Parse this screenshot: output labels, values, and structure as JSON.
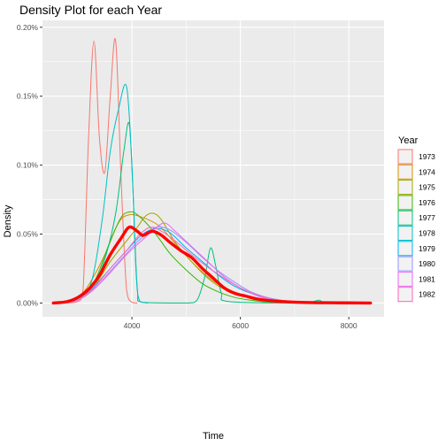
{
  "chart_data": {
    "type": "line",
    "title": "Density Plot for each Year",
    "xlabel": "Time",
    "ylabel": "Density",
    "xlim": [
      2350,
      8650
    ],
    "ylim": [
      -0.0001,
      0.00205
    ],
    "x_ticks": [
      {
        "value": 4000,
        "label": "4000"
      },
      {
        "value": 6000,
        "label": "6000"
      },
      {
        "value": 8000,
        "label": "8000"
      }
    ],
    "y_ticks": [
      {
        "value": 0.0,
        "label": "0.00%"
      },
      {
        "value": 0.0005,
        "label": "0.05%"
      },
      {
        "value": 0.001,
        "label": "0.10%"
      },
      {
        "value": 0.0015,
        "label": "0.15%"
      },
      {
        "value": 0.002,
        "label": "0.20%"
      }
    ],
    "grid": true,
    "legend": {
      "title": "Year",
      "position": "right"
    },
    "series": [
      {
        "name": "1973",
        "color": "#F8766D",
        "points": [
          [
            2800,
            0
          ],
          [
            3000,
            1e-05
          ],
          [
            3100,
            0.0001
          ],
          [
            3200,
            0.0012
          ],
          [
            3300,
            0.0019
          ],
          [
            3400,
            0.0012
          ],
          [
            3500,
            0.00095
          ],
          [
            3600,
            0.0015
          ],
          [
            3700,
            0.0019
          ],
          [
            3800,
            0.0009
          ],
          [
            3900,
            0.0001
          ],
          [
            4000,
            5e-06
          ],
          [
            4100,
            0
          ]
        ]
      },
      {
        "name": "1974",
        "color": "#D89000",
        "points": [
          [
            2700,
            0
          ],
          [
            3000,
            4e-05
          ],
          [
            3200,
            0.00013
          ],
          [
            3500,
            0.00035
          ],
          [
            3750,
            0.00058
          ],
          [
            3950,
            0.00064
          ],
          [
            4200,
            0.00062
          ],
          [
            4500,
            0.00056
          ],
          [
            4800,
            0.00043
          ],
          [
            5100,
            0.0003
          ],
          [
            5400,
            0.00019
          ],
          [
            5700,
            0.00011
          ],
          [
            6000,
            6e-05
          ],
          [
            6300,
            3e-05
          ],
          [
            6600,
            1e-05
          ],
          [
            7000,
            0
          ]
        ]
      },
      {
        "name": "1975",
        "color": "#A3A500",
        "points": [
          [
            2700,
            0
          ],
          [
            3000,
            3e-05
          ],
          [
            3300,
            0.00012
          ],
          [
            3600,
            0.0003
          ],
          [
            3900,
            0.00045
          ],
          [
            4100,
            0.00055
          ],
          [
            4250,
            0.00063
          ],
          [
            4400,
            0.00065
          ],
          [
            4550,
            0.0006
          ],
          [
            4800,
            0.00044
          ],
          [
            5100,
            0.0003
          ],
          [
            5400,
            0.00018
          ],
          [
            5700,
            0.0001
          ],
          [
            6000,
            6e-05
          ],
          [
            6400,
            2e-05
          ],
          [
            7000,
            0
          ]
        ]
      },
      {
        "name": "1976",
        "color": "#39B600",
        "points": [
          [
            2700,
            0
          ],
          [
            3000,
            4e-05
          ],
          [
            3300,
            0.00015
          ],
          [
            3600,
            0.00045
          ],
          [
            3800,
            0.00062
          ],
          [
            3950,
            0.00066
          ],
          [
            4100,
            0.00064
          ],
          [
            4400,
            0.00052
          ],
          [
            4700,
            0.00036
          ],
          [
            5000,
            0.00024
          ],
          [
            5300,
            0.00014
          ],
          [
            5600,
            8e-05
          ],
          [
            5900,
            4e-05
          ],
          [
            6200,
            2e-05
          ],
          [
            6600,
            0
          ]
        ]
      },
      {
        "name": "1977",
        "color": "#00BF7D",
        "points": [
          [
            2700,
            0
          ],
          [
            3000,
            3e-05
          ],
          [
            3300,
            0.00015
          ],
          [
            3500,
            0.00032
          ],
          [
            3700,
            0.00065
          ],
          [
            3850,
            0.0011
          ],
          [
            3950,
            0.0013
          ],
          [
            4020,
            0.0008
          ],
          [
            4100,
            0.0001
          ],
          [
            4200,
            5e-06
          ],
          [
            5000,
            0
          ],
          [
            5200,
            2e-05
          ],
          [
            5350,
            0.0002
          ],
          [
            5450,
            0.0004
          ],
          [
            5550,
            0.00026
          ],
          [
            5650,
            7e-05
          ],
          [
            5800,
            1e-05
          ],
          [
            7200,
            0
          ],
          [
            7350,
            1e-05
          ],
          [
            7450,
            2e-05
          ],
          [
            7550,
            0
          ]
        ]
      },
      {
        "name": "1978",
        "color": "#00BFC4",
        "points": [
          [
            2700,
            0
          ],
          [
            3000,
            3e-05
          ],
          [
            3250,
            0.00015
          ],
          [
            3450,
            0.0006
          ],
          [
            3600,
            0.0011
          ],
          [
            3750,
            0.0014
          ],
          [
            3900,
            0.00157
          ],
          [
            4000,
            0.001
          ],
          [
            4080,
            0.0002
          ],
          [
            4150,
            1e-05
          ],
          [
            4300,
            0
          ]
        ]
      },
      {
        "name": "1979",
        "color": "#00B0F6",
        "points": [
          [
            2700,
            0
          ],
          [
            3000,
            3e-05
          ],
          [
            3300,
            0.00012
          ],
          [
            3600,
            0.00025
          ],
          [
            3900,
            0.00038
          ],
          [
            4200,
            0.0005
          ],
          [
            4450,
            0.00054
          ],
          [
            4700,
            0.00051
          ],
          [
            5000,
            0.0004
          ],
          [
            5300,
            0.0003
          ],
          [
            5600,
            0.0002
          ],
          [
            5900,
            0.00012
          ],
          [
            6200,
            7e-05
          ],
          [
            6600,
            3e-05
          ],
          [
            7000,
            1e-05
          ],
          [
            7500,
            0
          ]
        ]
      },
      {
        "name": "1980",
        "color": "#9590FF",
        "points": [
          [
            2700,
            0
          ],
          [
            3000,
            2e-05
          ],
          [
            3300,
            0.0001
          ],
          [
            3600,
            0.00023
          ],
          [
            3900,
            0.00036
          ],
          [
            4200,
            0.00048
          ],
          [
            4450,
            0.00055
          ],
          [
            4700,
            0.00053
          ],
          [
            5000,
            0.00044
          ],
          [
            5300,
            0.00033
          ],
          [
            5600,
            0.00023
          ],
          [
            5900,
            0.00015
          ],
          [
            6200,
            8e-05
          ],
          [
            6600,
            3e-05
          ],
          [
            7000,
            1e-05
          ],
          [
            7400,
            0
          ]
        ]
      },
      {
        "name": "1981",
        "color": "#E76BF3",
        "points": [
          [
            2700,
            0
          ],
          [
            3000,
            2e-05
          ],
          [
            3300,
            0.0001
          ],
          [
            3600,
            0.00022
          ],
          [
            3900,
            0.00035
          ],
          [
            4200,
            0.00046
          ],
          [
            4400,
            0.00053
          ],
          [
            4600,
            0.00058
          ],
          [
            4800,
            0.00052
          ],
          [
            5100,
            0.00041
          ],
          [
            5400,
            0.0003
          ],
          [
            5700,
            0.00019
          ],
          [
            6000,
            0.00011
          ],
          [
            6400,
            4e-05
          ],
          [
            6800,
            1e-05
          ],
          [
            7200,
            0
          ]
        ]
      },
      {
        "name": "1982",
        "color": "#FF62BC",
        "points": [
          [
            2700,
            0
          ],
          [
            3000,
            2e-05
          ],
          [
            3300,
            0.00011
          ],
          [
            3600,
            0.00025
          ],
          [
            3900,
            0.00038
          ],
          [
            4150,
            0.0005
          ],
          [
            4350,
            0.00055
          ],
          [
            4550,
            0.00052
          ],
          [
            4800,
            0.00045
          ],
          [
            5100,
            0.00035
          ],
          [
            5400,
            0.00026
          ],
          [
            5700,
            0.00018
          ],
          [
            6000,
            0.00011
          ],
          [
            6300,
            6e-05
          ],
          [
            6700,
            2e-05
          ],
          [
            7200,
            0
          ]
        ]
      }
    ],
    "overall": {
      "color": "#FF0000",
      "points": [
        [
          2550,
          0
        ],
        [
          2800,
          1e-05
        ],
        [
          3000,
          4e-05
        ],
        [
          3200,
          0.0001
        ],
        [
          3400,
          0.0002
        ],
        [
          3600,
          0.00035
        ],
        [
          3800,
          0.00047
        ],
        [
          3950,
          0.00055
        ],
        [
          4100,
          0.00052
        ],
        [
          4200,
          0.00049
        ],
        [
          4300,
          0.00051
        ],
        [
          4400,
          0.00052
        ],
        [
          4550,
          0.00049
        ],
        [
          4700,
          0.00044
        ],
        [
          4900,
          0.00038
        ],
        [
          5100,
          0.00033
        ],
        [
          5300,
          0.00025
        ],
        [
          5500,
          0.00018
        ],
        [
          5700,
          0.00011
        ],
        [
          5900,
          7e-05
        ],
        [
          6100,
          5e-05
        ],
        [
          6300,
          3e-05
        ],
        [
          6600,
          1.5e-05
        ],
        [
          6900,
          8e-06
        ],
        [
          7200,
          4e-06
        ],
        [
          7600,
          2e-06
        ],
        [
          8000,
          1e-06
        ],
        [
          8400,
          0
        ]
      ]
    }
  }
}
